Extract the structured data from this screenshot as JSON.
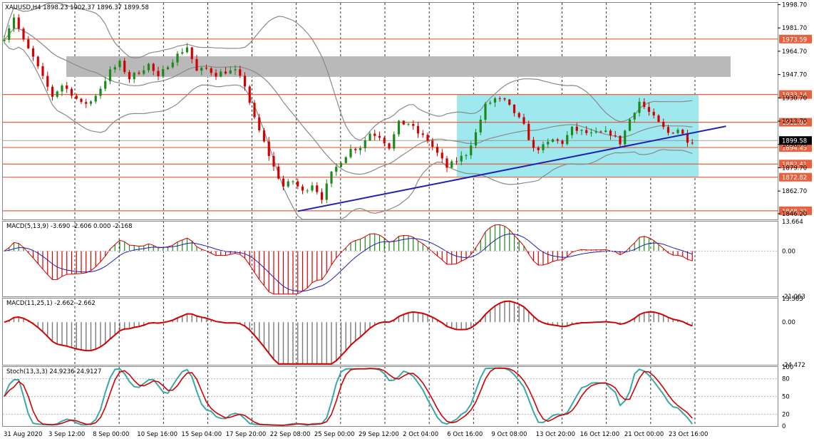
{
  "window": {
    "symbol_header": "XAUUSD,H4  1898.23 1902.37 1896.37 1899.58",
    "macd1_header": "MACD(5,13,9) -3.690 -2.606 0.000 -2.168",
    "macd2_header": "MACD(11,25,1) -2.662 -2.662",
    "stoch_header": "Stoch(13,3,3) 24.9236 24.9127"
  },
  "colors": {
    "up_candle": "#1a8a1a",
    "down_candle": "#d40000",
    "hlines": "#e8603c",
    "trendline": "#1f1fb5",
    "range_box": "#9ee8ee",
    "resistance_zone": "#b9b9b9",
    "bollinger": "#8a8a8a",
    "macd_signal": "#d40000",
    "macd_line": "#1f1fb5",
    "stoch_main": "#3aa8a8",
    "stoch_signal": "#d40000",
    "price_label_bg": "#e8603c"
  },
  "chart_data": [
    {
      "type": "candlestick",
      "title": "XAUUSD,H4",
      "x_ticks": [
        "31 Aug 2020",
        "3 Sep 12:00",
        "8 Sep 00:00",
        "10 Sep 16:00",
        "15 Sep 04:00",
        "17 Sep 20:00",
        "22 Sep 08:00",
        "25 Sep 00:00",
        "29 Sep 12:00",
        "2 Oct 04:00",
        "6 Oct 16:00",
        "9 Oct 08:00",
        "13 Oct 20:00",
        "16 Oct 12:00",
        "21 Oct 00:00",
        "23 Oct 16:00"
      ],
      "y_ticks": [
        "1998.70",
        "1981.70",
        "1964.70",
        "1947.70",
        "1930.70",
        "1913.70",
        "1896.70",
        "1879.70",
        "1862.70",
        "1846.20"
      ],
      "ylim": [
        1842,
        2000
      ],
      "close_path": [
        [
          0,
          1975
        ],
        [
          2,
          1990
        ],
        [
          4,
          1972
        ],
        [
          6,
          1960
        ],
        [
          8,
          1945
        ],
        [
          10,
          1932
        ],
        [
          12,
          1940
        ],
        [
          14,
          1934
        ],
        [
          16,
          1926
        ],
        [
          18,
          1928
        ],
        [
          20,
          1938
        ],
        [
          22,
          1950
        ],
        [
          24,
          1956
        ],
        [
          26,
          1945
        ],
        [
          28,
          1950
        ],
        [
          30,
          1955
        ],
        [
          32,
          1945
        ],
        [
          34,
          1955
        ],
        [
          36,
          1962
        ],
        [
          38,
          1968
        ],
        [
          40,
          1950
        ],
        [
          42,
          1952
        ],
        [
          44,
          1948
        ],
        [
          46,
          1950
        ],
        [
          48,
          1950
        ],
        [
          50,
          1940
        ],
        [
          52,
          1915
        ],
        [
          54,
          1898
        ],
        [
          56,
          1880
        ],
        [
          58,
          1866
        ],
        [
          60,
          1870
        ],
        [
          62,
          1862
        ],
        [
          64,
          1868
        ],
        [
          66,
          1858
        ],
        [
          68,
          1875
        ],
        [
          70,
          1885
        ],
        [
          72,
          1893
        ],
        [
          74,
          1895
        ],
        [
          76,
          1905
        ],
        [
          78,
          1903
        ],
        [
          80,
          1895
        ],
        [
          82,
          1912
        ],
        [
          84,
          1912
        ],
        [
          86,
          1905
        ],
        [
          88,
          1900
        ],
        [
          90,
          1890
        ],
        [
          92,
          1880
        ],
        [
          94,
          1885
        ],
        [
          96,
          1890
        ],
        [
          98,
          1905
        ],
        [
          100,
          1925
        ],
        [
          102,
          1930
        ],
        [
          104,
          1928
        ],
        [
          106,
          1920
        ],
        [
          108,
          1910
        ],
        [
          110,
          1893
        ],
        [
          112,
          1895
        ],
        [
          114,
          1900
        ],
        [
          116,
          1898
        ],
        [
          118,
          1908
        ],
        [
          120,
          1906
        ],
        [
          122,
          1904
        ],
        [
          124,
          1905
        ],
        [
          126,
          1905
        ],
        [
          128,
          1898
        ],
        [
          130,
          1915
        ],
        [
          132,
          1928
        ],
        [
          134,
          1920
        ],
        [
          136,
          1912
        ],
        [
          138,
          1905
        ],
        [
          140,
          1908
        ],
        [
          142,
          1900
        ],
        [
          143,
          1899.58
        ]
      ],
      "hlines": [
        {
          "value": 1973.59,
          "label": "1973.59"
        },
        {
          "value": 1933.14,
          "label": "1933.14"
        },
        {
          "value": 1912.89,
          "label": "1912.89"
        },
        {
          "value": 1894.45,
          "label": "1894.45"
        },
        {
          "value": 1882.41,
          "label": "1882.41"
        },
        {
          "value": 1872.82,
          "label": "1872.82"
        },
        {
          "value": 1848.32,
          "label": "1848.32"
        }
      ],
      "current_price": {
        "value": 1899.58,
        "label": "1899.58"
      },
      "resistance_zone": {
        "from_bar": 12,
        "to_bar": 144,
        "low": 1946,
        "high": 1961
      },
      "range_box": {
        "from_bar": 87,
        "to_bar": 134,
        "low": 1872.82,
        "high": 1933.14
      },
      "trendline": {
        "from": [
          61,
          1848
        ],
        "to": [
          150,
          1910
        ]
      }
    },
    {
      "type": "macd",
      "name": "MACD(5,13,9)",
      "y_ticks": [
        "13.664",
        "0.00",
        "-21.063"
      ],
      "ylim": [
        -21.063,
        13.664
      ]
    },
    {
      "type": "macd",
      "name": "MACD(11,25,1)",
      "y_ticks": [
        "13.583",
        "0.00",
        "-24.472"
      ],
      "ylim": [
        -24.472,
        13.583
      ]
    },
    {
      "type": "stochastic",
      "name": "Stoch(13,3,3)",
      "y_ticks": [
        "100",
        "80",
        "50",
        "20",
        "0"
      ],
      "ylim": [
        0,
        100
      ]
    }
  ]
}
